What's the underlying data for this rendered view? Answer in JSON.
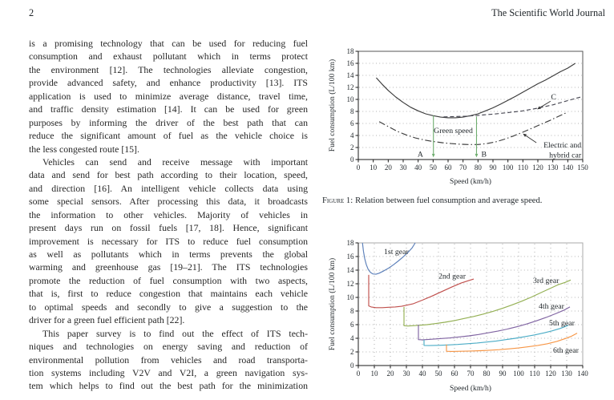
{
  "page": {
    "page_number": "2",
    "journal_title": "The Scientific World Journal"
  },
  "article": {
    "paragraphs": [
      {
        "indent": false,
        "end": true,
        "lines": [
          "is a promising technology that can be used for reducing fuel",
          "consumption and exhaust pollutant which in terms protect",
          "the environment [12]. The technologies alleviate congestion,",
          "provide advanced safety, and enhance productivity [13]. ITS",
          "application is used to minimize average distance, travel time,",
          "and traffic density estimation [14]. It can be used for green",
          "purposes by informing the driver of the best path that can",
          "reduce the significant amount of fuel as the vehicle choice is",
          "the less congested route [15]."
        ]
      },
      {
        "indent": true,
        "end": true,
        "lines": [
          "Vehicles can send and receive message with important",
          "data and send for best path according to their location, speed,",
          "and direction [16]. An intelligent vehicle collects data using",
          "some special sensors. After processing this data, it broadcasts",
          "the information to other vehicles. Majority of vehicles in",
          "present days run on fossil fuels [17, 18]. Hence, significant",
          "improvement is necessary for ITS to reduce fuel consumption",
          "as well as pollutants which in terms prevents the global",
          "warming and greenhouse gas [19–21]. The ITS technologies",
          "promote the reduction of fuel consumption with two aspects,",
          "that is, first to reduce congestion that maintains each vehicle",
          "to optimal speeds and secondly to give a suggestion to the",
          "driver for a green fuel efficient path [22]."
        ]
      },
      {
        "indent": true,
        "end": false,
        "lines": [
          "This paper survey is to find out the effect of ITS tech-",
          "niques and technologies on energy saving and reduction of",
          "environmental pollution from vehicles and road transporta-",
          "tion systems including V2V and V2I, a green navigation sys-",
          "tem which helps to find out the best path for the minimization"
        ]
      }
    ]
  },
  "figure1": {
    "caption_label": "Figure 1:",
    "caption_text": "Relation between fuel consumption and average speed."
  },
  "chart_data": [
    {
      "type": "line",
      "title": "",
      "xlabel": "Speed (km/h)",
      "ylabel": "Fuel consumption (L/100 km)",
      "xlim": [
        0,
        150
      ],
      "ylim": [
        0,
        18
      ],
      "xtick_step": 10,
      "ytick_step": 2,
      "grid": {
        "horizontal": true,
        "vertical": false
      },
      "border_color": "#555555",
      "legend": "none",
      "series": [
        {
          "name": "conventional-car",
          "style": "solid",
          "color": "#3b3b3b",
          "points": [
            [
              12,
              13.6
            ],
            [
              16,
              12.5
            ],
            [
              20,
              11.5
            ],
            [
              25,
              10.4
            ],
            [
              30,
              9.5
            ],
            [
              35,
              8.7
            ],
            [
              40,
              8.1
            ],
            [
              45,
              7.6
            ],
            [
              50,
              7.3
            ],
            [
              55,
              7.05
            ],
            [
              60,
              6.95
            ],
            [
              65,
              6.95
            ],
            [
              70,
              7.05
            ],
            [
              75,
              7.3
            ],
            [
              80,
              7.6
            ],
            [
              85,
              8.1
            ],
            [
              90,
              8.6
            ],
            [
              95,
              9.2
            ],
            [
              100,
              9.85
            ],
            [
              105,
              10.5
            ],
            [
              110,
              11.2
            ],
            [
              115,
              11.9
            ],
            [
              120,
              12.6
            ],
            [
              125,
              13.2
            ],
            [
              130,
              13.9
            ],
            [
              135,
              14.6
            ],
            [
              140,
              15.2
            ],
            [
              145,
              16.0
            ]
          ]
        },
        {
          "name": "C",
          "style": "dashed",
          "color": "#474752",
          "points": [
            [
              57,
              7.1
            ],
            [
              65,
              7.15
            ],
            [
              72,
              7.2
            ],
            [
              80,
              7.35
            ],
            [
              90,
              7.55
            ],
            [
              100,
              7.8
            ],
            [
              110,
              8.1
            ],
            [
              120,
              8.55
            ],
            [
              130,
              9.1
            ],
            [
              140,
              9.8
            ],
            [
              150,
              10.5
            ]
          ]
        },
        {
          "name": "electric-and-hybrid-car",
          "style": "dashdot",
          "color": "#3b3b3b",
          "points": [
            [
              14,
              6.3
            ],
            [
              20,
              5.5
            ],
            [
              26,
              4.7
            ],
            [
              32,
              4.1
            ],
            [
              38,
              3.6
            ],
            [
              44,
              3.25
            ],
            [
              50,
              3.0
            ],
            [
              56,
              2.8
            ],
            [
              62,
              2.65
            ],
            [
              68,
              2.55
            ],
            [
              74,
              2.5
            ],
            [
              80,
              2.5
            ],
            [
              86,
              2.65
            ],
            [
              92,
              2.95
            ],
            [
              98,
              3.4
            ],
            [
              104,
              3.95
            ],
            [
              110,
              4.55
            ],
            [
              116,
              5.2
            ],
            [
              122,
              5.85
            ],
            [
              128,
              6.5
            ],
            [
              134,
              7.2
            ],
            [
              140,
              7.9
            ]
          ]
        }
      ],
      "labels": [
        {
          "text": "Green speed",
          "x": 63.5,
          "y": 4.4,
          "anchor": "middle"
        },
        {
          "text": "A",
          "x": 41.5,
          "y": 0.5,
          "anchor": "middle"
        },
        {
          "text": "B",
          "x": 84,
          "y": 0.5,
          "anchor": "middle"
        },
        {
          "text": "C",
          "x": 130.5,
          "y": 10.0,
          "anchor": "middle"
        },
        {
          "text": "Electric and",
          "x": 149,
          "y": 2.0,
          "anchor": "end"
        },
        {
          "text": "hybrid car",
          "x": 149,
          "y": 0.35,
          "anchor": "end"
        }
      ],
      "arrows": [
        {
          "name": "green-speed-arrow-a",
          "from": [
            50.2,
            7.3
          ],
          "to": [
            50.2,
            0.35
          ],
          "color": "#6fae6f",
          "width": 1.1
        },
        {
          "name": "green-speed-arrow-b",
          "from": [
            79,
            7.15
          ],
          "to": [
            79,
            0.35
          ],
          "color": "#6fae6f",
          "width": 1.1
        },
        {
          "name": "c-leader-arrow",
          "from": [
            128.5,
            9.7
          ],
          "to": [
            119.5,
            8.35
          ],
          "color": "#333333",
          "width": 0.9
        },
        {
          "name": "ehv-leader-arrow",
          "from": [
            119,
            2.8
          ],
          "to": [
            110,
            4.3
          ],
          "color": "#333333",
          "width": 0.9
        }
      ],
      "annotation_green_color": "#6fae6f"
    },
    {
      "type": "line",
      "title": "",
      "xlabel": "Speed (km/h)",
      "ylabel": "Fuel consumption (L/100 km)",
      "xlim": [
        0,
        140
      ],
      "ylim": [
        0,
        18
      ],
      "xtick_step": 10,
      "ytick_step": 2,
      "grid": {
        "horizontal": true,
        "vertical": true
      },
      "border_color": "#aaaaaa",
      "legend": "none",
      "series": [
        {
          "name": "1st-gear",
          "style": "solid",
          "color": "#5b7fb9",
          "points": [
            [
              2.6,
              18
            ],
            [
              3.2,
              16.8
            ],
            [
              4,
              15.7
            ],
            [
              5,
              14.8
            ],
            [
              6.2,
              14.1
            ],
            [
              7.5,
              13.7
            ],
            [
              9,
              13.45
            ],
            [
              11,
              13.4
            ],
            [
              13,
              13.55
            ],
            [
              16,
              13.9
            ],
            [
              19,
              14.3
            ],
            [
              22,
              14.8
            ],
            [
              25,
              15.35
            ],
            [
              28,
              15.95
            ],
            [
              31,
              16.6
            ],
            [
              33.5,
              17.25
            ],
            [
              35.5,
              18
            ]
          ]
        },
        {
          "name": "2nd-gear",
          "style": "solid",
          "color": "#c0504d",
          "points": [
            [
              6.5,
              13.3
            ],
            [
              6.5,
              8.75
            ],
            [
              8,
              8.6
            ],
            [
              11,
              8.5
            ],
            [
              15,
              8.5
            ],
            [
              19,
              8.55
            ],
            [
              23,
              8.6
            ],
            [
              27,
              8.7
            ],
            [
              30,
              8.85
            ],
            [
              34,
              9.05
            ],
            [
              40,
              9.6
            ],
            [
              46,
              10.2
            ],
            [
              52,
              10.85
            ],
            [
              58,
              11.5
            ],
            [
              64,
              12.1
            ],
            [
              68,
              12.4
            ],
            [
              72,
              12.7
            ]
          ]
        },
        {
          "name": "3rd-gear",
          "style": "solid",
          "color": "#94b054",
          "points": [
            [
              28.5,
              8.6
            ],
            [
              28.5,
              5.85
            ],
            [
              31,
              5.8
            ],
            [
              34,
              5.85
            ],
            [
              38,
              5.9
            ],
            [
              43,
              6.0
            ],
            [
              48,
              6.15
            ],
            [
              54,
              6.35
            ],
            [
              60,
              6.6
            ],
            [
              66,
              6.9
            ],
            [
              72,
              7.2
            ],
            [
              78,
              7.55
            ],
            [
              84,
              7.95
            ],
            [
              90,
              8.4
            ],
            [
              96,
              8.9
            ],
            [
              102,
              9.45
            ],
            [
              108,
              10.05
            ],
            [
              114,
              10.7
            ],
            [
              120,
              11.35
            ],
            [
              125,
              11.9
            ],
            [
              129,
              12.2
            ],
            [
              132.5,
              12.55
            ]
          ]
        },
        {
          "name": "4th-gear",
          "style": "solid",
          "color": "#8064a2",
          "points": [
            [
              37.5,
              6.0
            ],
            [
              37.5,
              3.8
            ],
            [
              40,
              3.78
            ],
            [
              45,
              3.85
            ],
            [
              51,
              3.95
            ],
            [
              57,
              4.05
            ],
            [
              63,
              4.2
            ],
            [
              69,
              4.35
            ],
            [
              75,
              4.55
            ],
            [
              81,
              4.8
            ],
            [
              87,
              5.05
            ],
            [
              93,
              5.35
            ],
            [
              99,
              5.7
            ],
            [
              105,
              6.1
            ],
            [
              111,
              6.55
            ],
            [
              117,
              7.05
            ],
            [
              123,
              7.6
            ],
            [
              128,
              8.1
            ],
            [
              132,
              8.6
            ]
          ]
        },
        {
          "name": "5th-gear",
          "style": "solid",
          "color": "#4bacc6",
          "points": [
            [
              41,
              3.75
            ],
            [
              41,
              2.95
            ],
            [
              44,
              2.93
            ],
            [
              50,
              2.97
            ],
            [
              56,
              3.02
            ],
            [
              62,
              3.1
            ],
            [
              68,
              3.2
            ],
            [
              74,
              3.3
            ],
            [
              80,
              3.45
            ],
            [
              86,
              3.6
            ],
            [
              92,
              3.8
            ],
            [
              98,
              4.0
            ],
            [
              104,
              4.25
            ],
            [
              110,
              4.5
            ],
            [
              116,
              4.8
            ],
            [
              121,
              5.1
            ],
            [
              126,
              5.45
            ],
            [
              131,
              5.9
            ]
          ]
        },
        {
          "name": "6th-gear",
          "style": "solid",
          "color": "#f79646",
          "points": [
            [
              55,
              3.1
            ],
            [
              55,
              2.1
            ],
            [
              58,
              2.07
            ],
            [
              64,
              2.1
            ],
            [
              70,
              2.13
            ],
            [
              76,
              2.18
            ],
            [
              82,
              2.25
            ],
            [
              88,
              2.33
            ],
            [
              94,
              2.45
            ],
            [
              100,
              2.58
            ],
            [
              106,
              2.75
            ],
            [
              112,
              2.95
            ],
            [
              118,
              3.2
            ],
            [
              124,
              3.55
            ],
            [
              129,
              3.95
            ],
            [
              133,
              4.3
            ],
            [
              136.5,
              4.75
            ]
          ]
        }
      ],
      "labels": [
        {
          "text": "1st gear",
          "x": 16,
          "y": 16.35,
          "anchor": "start"
        },
        {
          "text": "2nd gear",
          "x": 50,
          "y": 12.75,
          "anchor": "start"
        },
        {
          "text": "3rd gear",
          "x": 109,
          "y": 12.1,
          "anchor": "start"
        },
        {
          "text": "4th gear",
          "x": 112.5,
          "y": 8.35,
          "anchor": "start"
        },
        {
          "text": "5th gear",
          "x": 119,
          "y": 5.9,
          "anchor": "start"
        },
        {
          "text": "6th gear",
          "x": 121.5,
          "y": 1.9,
          "anchor": "start"
        }
      ],
      "arrows": []
    }
  ]
}
